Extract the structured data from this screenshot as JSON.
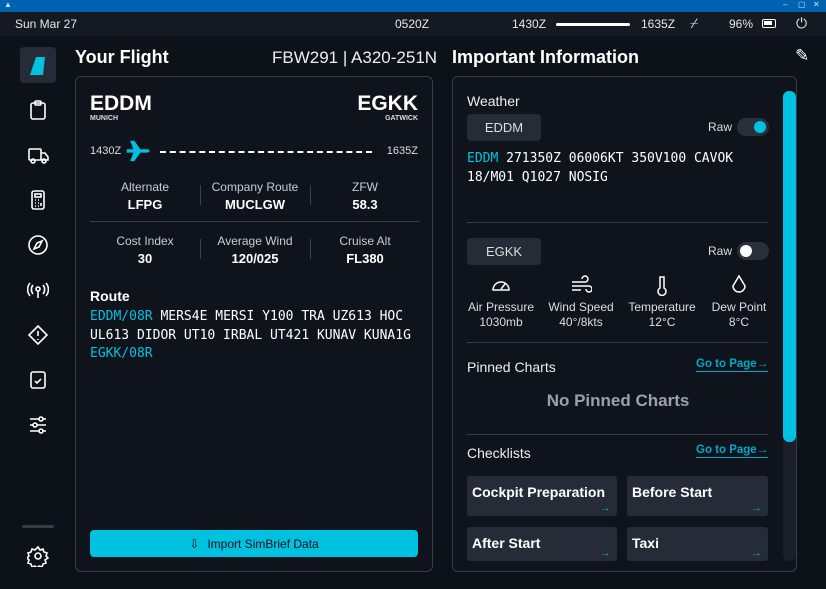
{
  "status": {
    "date": "Sun Mar 27",
    "utc": "0520Z",
    "dep_time": "1430Z",
    "arr_time": "1635Z",
    "battery": "96%",
    "flight_progress": 1.0
  },
  "window": {
    "minimize": "–",
    "maximize": "▢",
    "close": "✕"
  },
  "sidebar": {
    "items": [
      {
        "icon": "flybywire-logo-icon",
        "active": true
      },
      {
        "icon": "clipboard-icon"
      },
      {
        "icon": "truck-icon"
      },
      {
        "icon": "calculator-icon"
      },
      {
        "icon": "compass-icon"
      },
      {
        "icon": "antenna-icon"
      },
      {
        "icon": "warning-diamond-icon"
      },
      {
        "icon": "checklist-icon"
      },
      {
        "icon": "sliders-icon"
      },
      {
        "icon": "gear-icon"
      }
    ]
  },
  "flight": {
    "title": "Your Flight",
    "callsign": "FBW291 | A320-251N",
    "origin": {
      "icao": "EDDM",
      "name": "MUNICH",
      "time": "1430Z"
    },
    "destination": {
      "icao": "EGKK",
      "name": "GATWICK",
      "time": "1635Z"
    },
    "stats": [
      {
        "label": "Alternate",
        "value": "LFPG"
      },
      {
        "label": "Company Route",
        "value": "MUCLGW"
      },
      {
        "label": "ZFW",
        "value": "58.3"
      },
      {
        "label": "Cost Index",
        "value": "30"
      },
      {
        "label": "Average Wind",
        "value": "120/025"
      },
      {
        "label": "Cruise Alt",
        "value": "FL380"
      }
    ],
    "route_label": "Route",
    "route": {
      "origin": "EDDM/08R",
      "middle": " MERS4E MERSI Y100 TRA UZ613 HOC UL613 DIDOR UT10 IRBAL UT421 KUNAV KUNA1G ",
      "destination": "EGKK/08R"
    },
    "import_button": "Import SimBrief Data"
  },
  "info": {
    "title": "Important Information",
    "weather": {
      "label": "Weather",
      "raw_label": "Raw",
      "origin": {
        "icao": "EDDM",
        "raw": true,
        "metar_station": "EDDM",
        "metar": " 271350Z 06006KT 350V100 CAVOK 18/M01 Q1027 NOSIG"
      },
      "destination": {
        "icao": "EGKK",
        "raw": false,
        "items": [
          {
            "icon": "gauge-icon",
            "label": "Air Pressure",
            "value": "1030mb"
          },
          {
            "icon": "wind-icon",
            "label": "Wind Speed",
            "value": "40°/8kts"
          },
          {
            "icon": "thermometer-icon",
            "label": "Temperature",
            "value": "12°C"
          },
          {
            "icon": "droplet-icon",
            "label": "Dew Point",
            "value": "8°C"
          }
        ]
      }
    },
    "pinned": {
      "label": "Pinned Charts",
      "goto": "Go to Page→",
      "empty": "No Pinned Charts"
    },
    "checklists": {
      "label": "Checklists",
      "goto": "Go to Page→",
      "items": [
        "Cockpit Preparation",
        "Before Start",
        "After Start",
        "Taxi"
      ],
      "arrow": "→"
    }
  },
  "colors": {
    "accent": "#00c2e0",
    "background": "#0d1118",
    "panel": "#0f141c",
    "card": "#262c37"
  }
}
